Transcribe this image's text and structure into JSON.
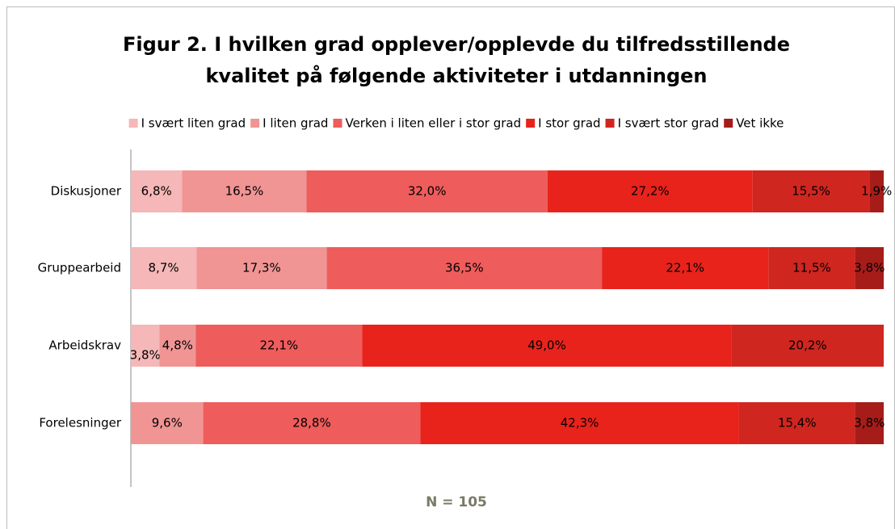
{
  "chart_data": {
    "type": "stacked_bar_horizontal",
    "title": [
      "Figur 2. I hvilken grad opplever/opplevde du tilfredsstillende",
      "kvalitet på følgende aktiviteter i utdanningen"
    ],
    "categories": [
      "Diskusjoner",
      "Gruppearbeid",
      "Arbeidskrav",
      "Forelesninger"
    ],
    "xlim": [
      0,
      100
    ],
    "series": [
      {
        "name": "I svært liten grad",
        "color": "#f5b7b7",
        "values": [
          6.8,
          8.7,
          3.8,
          null
        ],
        "value_labels": [
          "6,8%",
          "8,7%",
          "3,8%",
          null
        ]
      },
      {
        "name": "I liten grad",
        "color": "#f19494",
        "values": [
          16.5,
          17.3,
          4.8,
          9.6
        ],
        "value_labels": [
          "16,5%",
          "17,3%",
          "4,8%",
          "9,6%"
        ]
      },
      {
        "name": "Verken i liten eller i stor grad",
        "color": "#ee5c5c",
        "values": [
          32.0,
          36.5,
          22.1,
          28.8
        ],
        "value_labels": [
          "32,0%",
          "36,5%",
          "22,1%",
          "28,8%"
        ]
      },
      {
        "name": "I stor grad",
        "color": "#e8231c",
        "values": [
          27.2,
          22.1,
          49.0,
          42.3
        ],
        "value_labels": [
          "27,2%",
          "22,1%",
          "49,0%",
          "42,3%"
        ]
      },
      {
        "name": "I svært stor grad",
        "color": "#cf2620",
        "values": [
          15.5,
          11.5,
          20.2,
          15.4
        ],
        "value_labels": [
          "15,5%",
          "11,5%",
          "20,2%",
          "15,4%"
        ]
      },
      {
        "name": "Vet ikke",
        "color": "#a61c19",
        "values": [
          1.9,
          3.8,
          null,
          3.8
        ],
        "value_labels": [
          "1,9%",
          "3,8%",
          null,
          "3,8%"
        ]
      }
    ],
    "note": "N = 105"
  }
}
